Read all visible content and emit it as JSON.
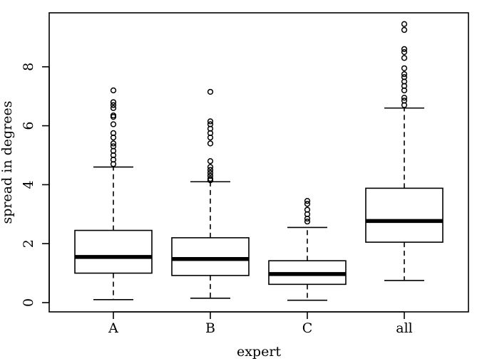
{
  "chart_data": {
    "type": "boxplot",
    "xlabel": "expert",
    "ylabel": "spread in degrees",
    "ylim": [
      -0.3,
      9.8
    ],
    "yticks": [
      0,
      2,
      4,
      6,
      8
    ],
    "ytick_labels": [
      "0",
      "2",
      "4",
      "6",
      "8"
    ],
    "categories": [
      "A",
      "B",
      "C",
      "all"
    ],
    "boxes": [
      {
        "category": "A",
        "min": 0.1,
        "q1": 1.0,
        "median": 1.55,
        "q3": 2.45,
        "max": 4.6,
        "outliers": [
          4.7,
          4.85,
          5.0,
          5.15,
          5.3,
          5.4,
          5.6,
          5.75,
          6.05,
          6.3,
          6.35,
          6.6,
          6.7,
          6.8,
          7.2
        ]
      },
      {
        "category": "B",
        "min": 0.15,
        "q1": 0.92,
        "median": 1.48,
        "q3": 2.2,
        "max": 4.1,
        "outliers": [
          4.15,
          4.2,
          4.3,
          4.4,
          4.5,
          4.6,
          4.8,
          5.4,
          5.6,
          5.75,
          5.9,
          6.05,
          6.15,
          7.15
        ]
      },
      {
        "category": "C",
        "min": 0.08,
        "q1": 0.62,
        "median": 0.97,
        "q3": 1.42,
        "max": 2.55,
        "outliers": [
          2.75,
          2.85,
          3.0,
          3.15,
          3.35,
          3.45
        ]
      },
      {
        "category": "all",
        "min": 0.75,
        "q1": 2.05,
        "median": 2.77,
        "q3": 3.88,
        "max": 6.6,
        "outliers": [
          6.7,
          6.85,
          6.95,
          7.2,
          7.35,
          7.5,
          7.65,
          7.75,
          7.95,
          8.3,
          8.5,
          8.6,
          9.25,
          9.45
        ]
      }
    ]
  }
}
